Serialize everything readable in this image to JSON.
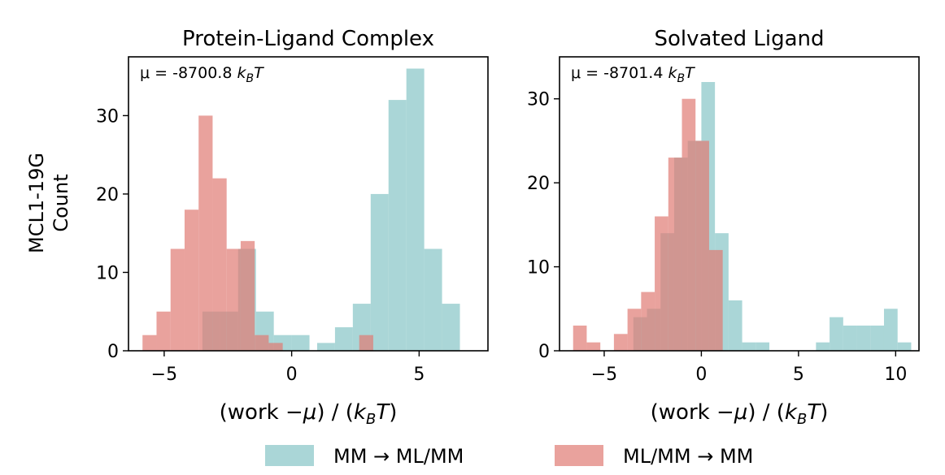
{
  "figure": {
    "ylabel_lines": [
      "MCL1-19G",
      "Count"
    ]
  },
  "legend": {
    "items": [
      {
        "label": "MM → ML/MM",
        "color": "#86c4c6"
      },
      {
        "label": "ML/MM → MM",
        "color": "#e07a73"
      }
    ]
  },
  "chart_data": [
    {
      "type": "bar",
      "title": "Protein-Ligand Complex",
      "annotation": "μ = -8700.8 k_B T",
      "annotation_prefix": "μ = -8700.8 ",
      "xlabel": "(work −μ) / (k_B T)",
      "xlim": [
        -6.4,
        7.7
      ],
      "ylim": [
        0,
        37.5
      ],
      "xticks": [
        -5,
        0,
        5
      ],
      "xtick_labels": [
        "−5",
        "0",
        "5"
      ],
      "yticks": [
        0,
        10,
        20,
        30
      ],
      "yticks_labels": [
        "0",
        "10",
        "20",
        "30"
      ],
      "grid": false,
      "series": [
        {
          "name": "MM → ML/MM",
          "color": "#86c4c6",
          "alpha": 0.7,
          "bin_width": 0.7,
          "bins": [
            {
              "x0": -3.5,
              "count": 5
            },
            {
              "x0": -2.8,
              "count": 5
            },
            {
              "x0": -2.1,
              "count": 13
            },
            {
              "x0": -1.4,
              "count": 5
            },
            {
              "x0": -0.7,
              "count": 2
            },
            {
              "x0": 0.0,
              "count": 2
            },
            {
              "x0": 1.0,
              "count": 1
            },
            {
              "x0": 1.7,
              "count": 3
            },
            {
              "x0": 2.4,
              "count": 6
            },
            {
              "x0": 3.1,
              "count": 20
            },
            {
              "x0": 3.8,
              "count": 32
            },
            {
              "x0": 4.5,
              "count": 36
            },
            {
              "x0": 5.2,
              "count": 13
            },
            {
              "x0": 5.9,
              "count": 6
            }
          ]
        },
        {
          "name": "ML/MM → MM",
          "color": "#e07a73",
          "alpha": 0.7,
          "bin_width": 0.55,
          "bins": [
            {
              "x0": -5.85,
              "count": 2
            },
            {
              "x0": -5.3,
              "count": 5
            },
            {
              "x0": -4.75,
              "count": 13
            },
            {
              "x0": -4.2,
              "count": 18
            },
            {
              "x0": -3.65,
              "count": 30
            },
            {
              "x0": -3.1,
              "count": 22
            },
            {
              "x0": -2.55,
              "count": 13
            },
            {
              "x0": -2.0,
              "count": 14
            },
            {
              "x0": -1.45,
              "count": 2
            },
            {
              "x0": -0.9,
              "count": 1
            },
            {
              "x0": 2.65,
              "count": 2
            }
          ]
        }
      ]
    },
    {
      "type": "bar",
      "title": "Solvated Ligand",
      "annotation": "μ = -8701.4 k_B T",
      "annotation_prefix": "μ = -8701.4 ",
      "xlabel": "(work −μ) / (k_B T)",
      "xlim": [
        -7.3,
        11.2
      ],
      "ylim": [
        0,
        35
      ],
      "xticks": [
        -5,
        0,
        5,
        10
      ],
      "xtick_labels": [
        "−5",
        "0",
        "5",
        "10"
      ],
      "yticks": [
        0,
        10,
        20,
        30
      ],
      "yticks_labels": [
        "0",
        "10",
        "20",
        "30"
      ],
      "grid": false,
      "series": [
        {
          "name": "MM → ML/MM",
          "color": "#86c4c6",
          "alpha": 0.7,
          "bin_width": 0.7,
          "bins": [
            {
              "x0": -3.5,
              "count": 4
            },
            {
              "x0": -2.8,
              "count": 5
            },
            {
              "x0": -2.1,
              "count": 14
            },
            {
              "x0": -1.4,
              "count": 23
            },
            {
              "x0": -0.7,
              "count": 25
            },
            {
              "x0": 0.0,
              "count": 32
            },
            {
              "x0": 0.7,
              "count": 14
            },
            {
              "x0": 1.4,
              "count": 6
            },
            {
              "x0": 2.1,
              "count": 1
            },
            {
              "x0": 2.8,
              "count": 1
            },
            {
              "x0": 5.9,
              "count": 1
            },
            {
              "x0": 6.6,
              "count": 4
            },
            {
              "x0": 7.3,
              "count": 3
            },
            {
              "x0": 8.0,
              "count": 3
            },
            {
              "x0": 8.7,
              "count": 3
            },
            {
              "x0": 9.4,
              "count": 5
            },
            {
              "x0": 10.1,
              "count": 1
            }
          ]
        },
        {
          "name": "ML/MM → MM",
          "color": "#e07a73",
          "alpha": 0.7,
          "bin_width": 0.7,
          "bins": [
            {
              "x0": -6.6,
              "count": 3
            },
            {
              "x0": -5.9,
              "count": 1
            },
            {
              "x0": -4.5,
              "count": 2
            },
            {
              "x0": -3.8,
              "count": 5
            },
            {
              "x0": -3.1,
              "count": 7
            },
            {
              "x0": -2.4,
              "count": 16
            },
            {
              "x0": -1.7,
              "count": 23
            },
            {
              "x0": -1.0,
              "count": 30
            },
            {
              "x0": -0.3,
              "count": 25
            },
            {
              "x0": 0.4,
              "count": 12
            }
          ]
        }
      ]
    }
  ]
}
